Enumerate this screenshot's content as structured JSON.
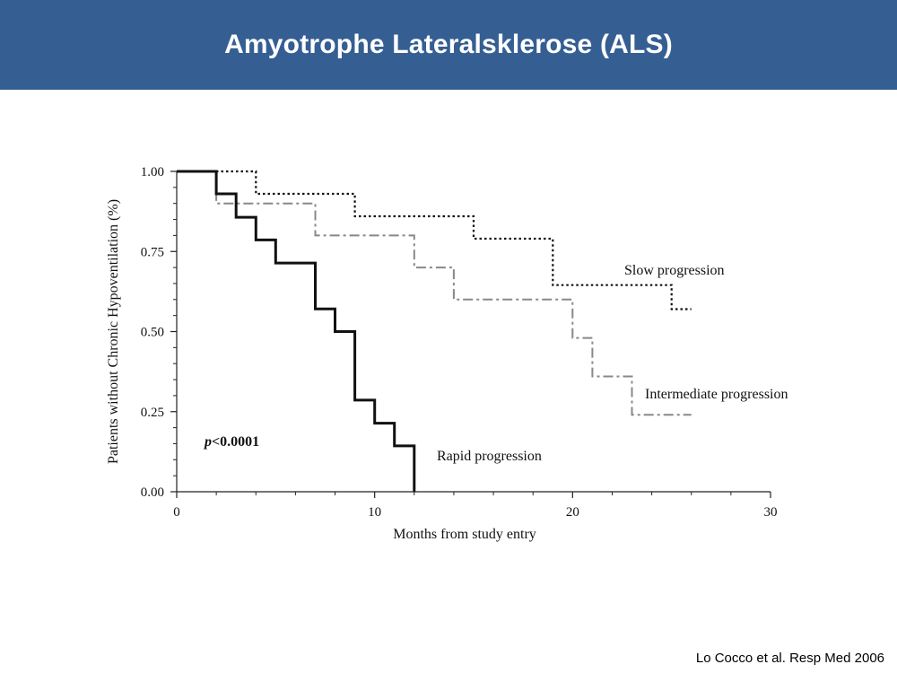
{
  "slide": {
    "title": "Amyotrophe Lateralsklerose (ALS)",
    "citation": "Lo Cocco et al. Resp Med 2006"
  },
  "colors": {
    "header_bg": "#355f93"
  },
  "chart_data": {
    "type": "line",
    "title": "",
    "xlabel": "Months from study entry",
    "ylabel": "Patients without Chronic Hypoventilation (%)",
    "xlim": [
      0,
      30
    ],
    "ylim": [
      0,
      1
    ],
    "x_ticks": [
      "0",
      "10",
      "20",
      "30"
    ],
    "y_ticks": [
      "0.00",
      "0.25",
      "0.50",
      "0.75",
      "1.00"
    ],
    "grid": false,
    "annotation": {
      "p_italic": "p",
      "p_rest": "<0.0001"
    },
    "series": [
      {
        "name": "Slow progression",
        "style": "dotted",
        "color": "#111111",
        "points": [
          [
            0,
            1.0
          ],
          [
            4,
            1.0
          ],
          [
            4,
            0.93
          ],
          [
            9,
            0.93
          ],
          [
            9,
            0.86
          ],
          [
            15,
            0.86
          ],
          [
            15,
            0.79
          ],
          [
            19,
            0.79
          ],
          [
            19,
            0.645
          ],
          [
            25,
            0.645
          ],
          [
            25,
            0.57
          ],
          [
            26,
            0.57
          ]
        ]
      },
      {
        "name": "Intermediate progression",
        "style": "dashdot",
        "color": "#888888",
        "points": [
          [
            0,
            1.0
          ],
          [
            2,
            1.0
          ],
          [
            2,
            0.9
          ],
          [
            7,
            0.9
          ],
          [
            7,
            0.8
          ],
          [
            12,
            0.8
          ],
          [
            12,
            0.7
          ],
          [
            14,
            0.7
          ],
          [
            14,
            0.6
          ],
          [
            20,
            0.6
          ],
          [
            20,
            0.48
          ],
          [
            21,
            0.48
          ],
          [
            21,
            0.36
          ],
          [
            23,
            0.36
          ],
          [
            23,
            0.24
          ],
          [
            26,
            0.24
          ]
        ]
      },
      {
        "name": "Rapid progression",
        "style": "solid",
        "color": "#111111",
        "points": [
          [
            0,
            1.0
          ],
          [
            2,
            1.0
          ],
          [
            2,
            0.93
          ],
          [
            3,
            0.93
          ],
          [
            3,
            0.857
          ],
          [
            4,
            0.857
          ],
          [
            4,
            0.786
          ],
          [
            5,
            0.786
          ],
          [
            5,
            0.714
          ],
          [
            7,
            0.714
          ],
          [
            7,
            0.571
          ],
          [
            8,
            0.571
          ],
          [
            8,
            0.5
          ],
          [
            9,
            0.5
          ],
          [
            9,
            0.286
          ],
          [
            10,
            0.286
          ],
          [
            10,
            0.214
          ],
          [
            11,
            0.214
          ],
          [
            11,
            0.143
          ],
          [
            12,
            0.143
          ],
          [
            12,
            0.0
          ]
        ]
      }
    ]
  }
}
